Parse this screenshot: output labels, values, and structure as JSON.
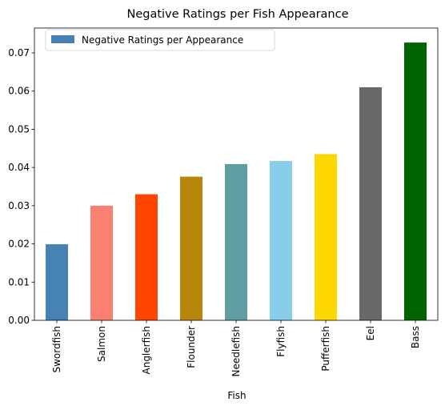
{
  "chart_data": {
    "type": "bar",
    "title": "Negative Ratings per Fish Appearance",
    "xlabel": "Fish",
    "ylabel": "",
    "ylim": [
      0,
      0.0765
    ],
    "yticks": [
      "0.00",
      "0.01",
      "0.02",
      "0.03",
      "0.04",
      "0.05",
      "0.06",
      "0.07"
    ],
    "categories": [
      "Swordfish",
      "Salmon",
      "Anglerfish",
      "Flounder",
      "Needlefish",
      "Flyfish",
      "Pufferfish",
      "Eel",
      "Bass"
    ],
    "series": [
      {
        "name": "Negative Ratings per Appearance",
        "values": [
          0.0199,
          0.03,
          0.033,
          0.0376,
          0.0409,
          0.0417,
          0.0435,
          0.061,
          0.0727
        ],
        "colors": [
          "#4682b4",
          "#fa8072",
          "#ff4500",
          "#b8860b",
          "#5f9ea0",
          "#87ceeb",
          "#ffd700",
          "#696969",
          "#006400"
        ]
      }
    ],
    "legend": "top-left",
    "grid": false
  }
}
